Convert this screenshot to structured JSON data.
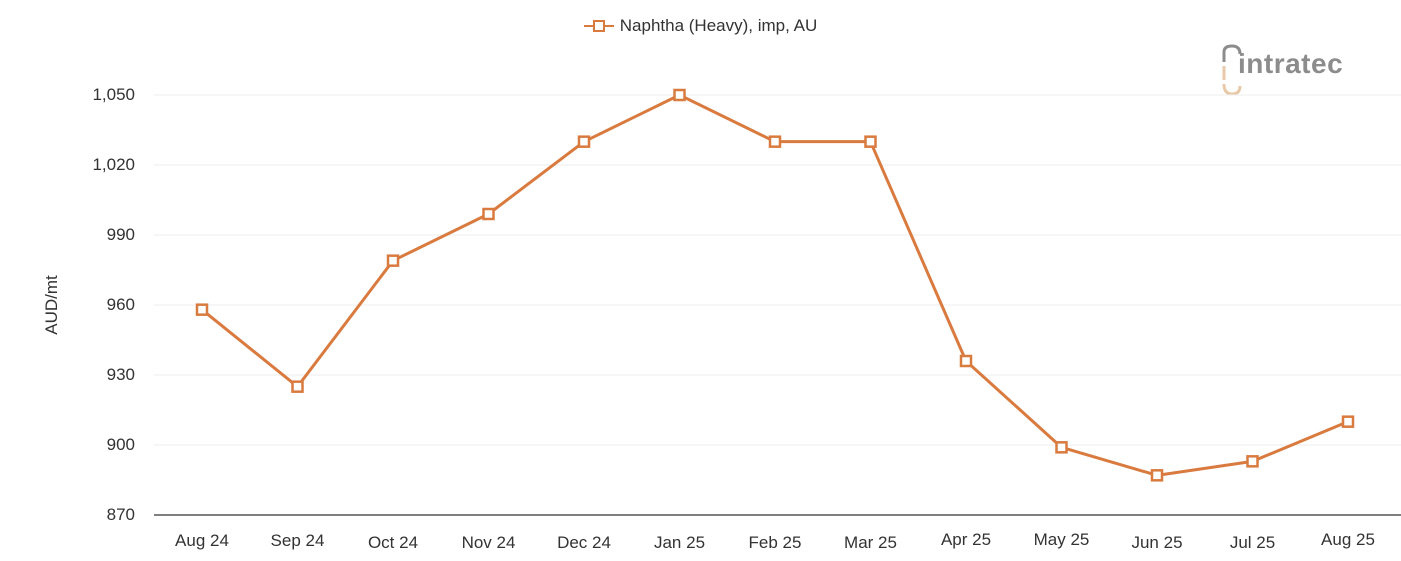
{
  "chart_data": {
    "type": "line",
    "title": "",
    "xlabel": "",
    "ylabel": "AUD/mt",
    "ylim": [
      870,
      1050
    ],
    "yticks": [
      870,
      900,
      930,
      960,
      990,
      1020,
      1050
    ],
    "ytick_labels": [
      "870",
      "900",
      "930",
      "960",
      "990",
      "1,020",
      "1,050"
    ],
    "categories": [
      "Aug 24",
      "Sep 24",
      "Oct 24",
      "Nov 24",
      "Dec 24",
      "Jan 25",
      "Feb 25",
      "Mar 25",
      "Apr 25",
      "May 25",
      "Jun 25",
      "Jul 25",
      "Aug 25"
    ],
    "series": [
      {
        "name": "Naphtha (Heavy), imp, AU",
        "color": "#d97a3f",
        "marker": "square-open",
        "values": [
          958,
          925,
          979,
          999,
          1030,
          1050,
          1030,
          1030,
          936,
          899,
          887,
          893,
          910
        ]
      }
    ],
    "legend_position": "top-center",
    "grid": "horizontal"
  },
  "legend": {
    "label": "Naphtha (Heavy), imp, AU"
  },
  "logo": {
    "text": "intratec"
  },
  "colors": {
    "series": "#d97a3f",
    "grid": "#eeeeee",
    "axis": "#555555",
    "logo_gray": "#8c8c8c",
    "logo_tan": "#e8c9a8"
  }
}
